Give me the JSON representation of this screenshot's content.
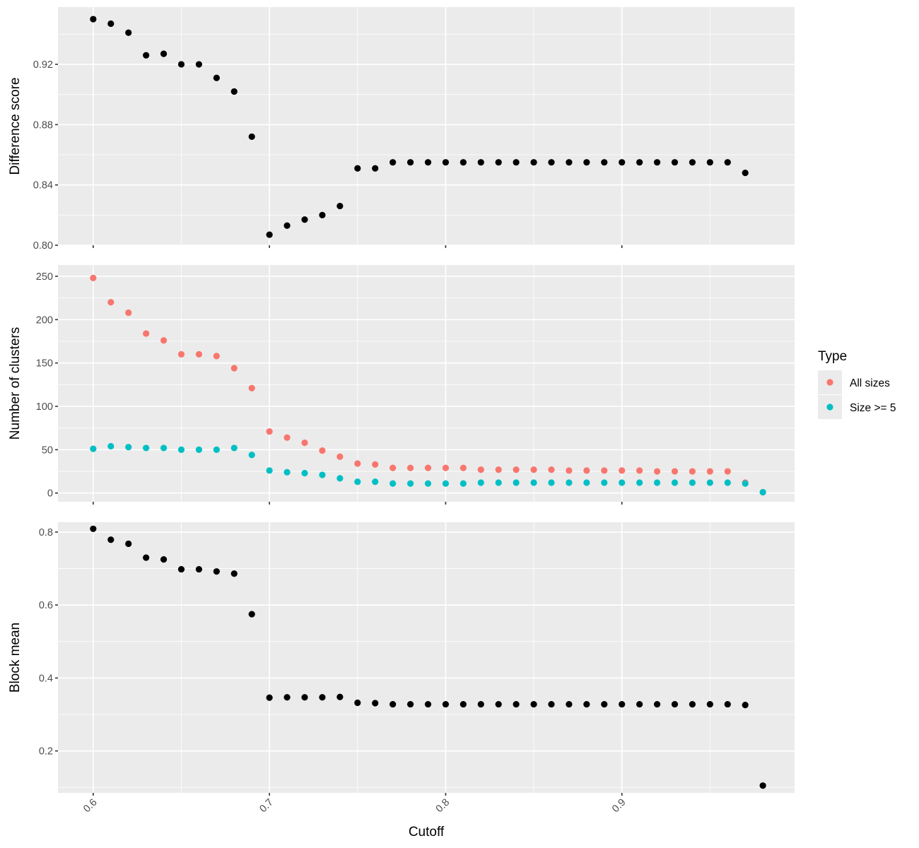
{
  "chart_data": [
    {
      "type": "scatter",
      "ylabel": "Difference score",
      "xlim": [
        0.58,
        0.998
      ],
      "ylim": [
        0.8,
        0.958
      ],
      "yticks": [
        0.8,
        0.84,
        0.88,
        0.92
      ],
      "ytick_labels": [
        "0.80",
        "0.84",
        "0.88",
        "0.92"
      ],
      "series": [
        {
          "color": "#000000",
          "x": [
            0.6,
            0.61,
            0.62,
            0.63,
            0.64,
            0.65,
            0.66,
            0.67,
            0.68,
            0.69,
            0.7,
            0.71,
            0.72,
            0.73,
            0.74,
            0.75,
            0.76,
            0.77,
            0.78,
            0.79,
            0.8,
            0.81,
            0.82,
            0.83,
            0.84,
            0.85,
            0.86,
            0.87,
            0.88,
            0.89,
            0.9,
            0.91,
            0.92,
            0.93,
            0.94,
            0.95,
            0.96,
            0.97
          ],
          "y": [
            0.95,
            0.947,
            0.941,
            0.926,
            0.927,
            0.92,
            0.92,
            0.911,
            0.902,
            0.872,
            0.807,
            0.813,
            0.817,
            0.82,
            0.826,
            0.851,
            0.851,
            0.855,
            0.855,
            0.855,
            0.855,
            0.855,
            0.855,
            0.855,
            0.855,
            0.855,
            0.855,
            0.855,
            0.855,
            0.855,
            0.855,
            0.855,
            0.855,
            0.855,
            0.855,
            0.855,
            0.855,
            0.848
          ]
        }
      ]
    },
    {
      "type": "scatter",
      "ylabel": "Number of clusters",
      "xlim": [
        0.58,
        0.998
      ],
      "ylim": [
        -10,
        263
      ],
      "yticks": [
        0,
        50,
        100,
        150,
        200,
        250
      ],
      "ytick_labels": [
        "0",
        "50",
        "100",
        "150",
        "200",
        "250"
      ],
      "series": [
        {
          "name": "All sizes",
          "color": "#F8766D",
          "x": [
            0.6,
            0.61,
            0.62,
            0.63,
            0.64,
            0.65,
            0.66,
            0.67,
            0.68,
            0.69,
            0.7,
            0.71,
            0.72,
            0.73,
            0.74,
            0.75,
            0.76,
            0.77,
            0.78,
            0.79,
            0.8,
            0.81,
            0.82,
            0.83,
            0.84,
            0.85,
            0.86,
            0.87,
            0.88,
            0.89,
            0.9,
            0.91,
            0.92,
            0.93,
            0.94,
            0.95,
            0.96,
            0.97,
            0.98
          ],
          "y": [
            248,
            220,
            208,
            184,
            176,
            160,
            160,
            158,
            144,
            121,
            71,
            64,
            58,
            49,
            42,
            34,
            33,
            29,
            29,
            29,
            29,
            29,
            27,
            27,
            27,
            27,
            27,
            26,
            26,
            26,
            26,
            26,
            25,
            25,
            25,
            25,
            25,
            12,
            1
          ]
        },
        {
          "name": "Size >= 5",
          "color": "#00BFC4",
          "x": [
            0.6,
            0.61,
            0.62,
            0.63,
            0.64,
            0.65,
            0.66,
            0.67,
            0.68,
            0.69,
            0.7,
            0.71,
            0.72,
            0.73,
            0.74,
            0.75,
            0.76,
            0.77,
            0.78,
            0.79,
            0.8,
            0.81,
            0.82,
            0.83,
            0.84,
            0.85,
            0.86,
            0.87,
            0.88,
            0.89,
            0.9,
            0.91,
            0.92,
            0.93,
            0.94,
            0.95,
            0.96,
            0.97,
            0.98
          ],
          "y": [
            51,
            54,
            53,
            52,
            52,
            50,
            50,
            50,
            52,
            44,
            26,
            24,
            23,
            21,
            17,
            13,
            13,
            11,
            11,
            11,
            11,
            11,
            12,
            12,
            12,
            12,
            12,
            12,
            12,
            12,
            12,
            12,
            12,
            12,
            12,
            12,
            12,
            11,
            1
          ]
        }
      ]
    },
    {
      "type": "scatter",
      "ylabel": "Block mean",
      "xlabel": "Cutoff",
      "xlim": [
        0.58,
        0.998
      ],
      "ylim": [
        0.085,
        0.827
      ],
      "yticks": [
        0.2,
        0.4,
        0.6,
        0.8
      ],
      "ytick_labels": [
        "0.2",
        "0.4",
        "0.6",
        "0.8"
      ],
      "xticks": [
        0.6,
        0.7,
        0.8,
        0.9
      ],
      "xtick_labels": [
        "0.6",
        "0.7",
        "0.8",
        "0.9"
      ],
      "series": [
        {
          "color": "#000000",
          "x": [
            0.6,
            0.61,
            0.62,
            0.63,
            0.64,
            0.65,
            0.66,
            0.67,
            0.68,
            0.69,
            0.7,
            0.71,
            0.72,
            0.73,
            0.74,
            0.75,
            0.76,
            0.77,
            0.78,
            0.79,
            0.8,
            0.81,
            0.82,
            0.83,
            0.84,
            0.85,
            0.86,
            0.87,
            0.88,
            0.89,
            0.9,
            0.91,
            0.92,
            0.93,
            0.94,
            0.95,
            0.96,
            0.97,
            0.98
          ],
          "y": [
            0.809,
            0.779,
            0.768,
            0.73,
            0.725,
            0.698,
            0.698,
            0.692,
            0.686,
            0.575,
            0.346,
            0.347,
            0.347,
            0.347,
            0.348,
            0.332,
            0.331,
            0.328,
            0.328,
            0.328,
            0.328,
            0.328,
            0.328,
            0.328,
            0.328,
            0.328,
            0.328,
            0.328,
            0.328,
            0.328,
            0.328,
            0.328,
            0.328,
            0.328,
            0.328,
            0.328,
            0.328,
            0.326,
            0.105
          ]
        }
      ]
    }
  ],
  "legend": {
    "title": "Type",
    "items": [
      {
        "label": "All sizes",
        "color": "#F8766D"
      },
      {
        "label": "Size >= 5",
        "color": "#00BFC4"
      }
    ]
  }
}
